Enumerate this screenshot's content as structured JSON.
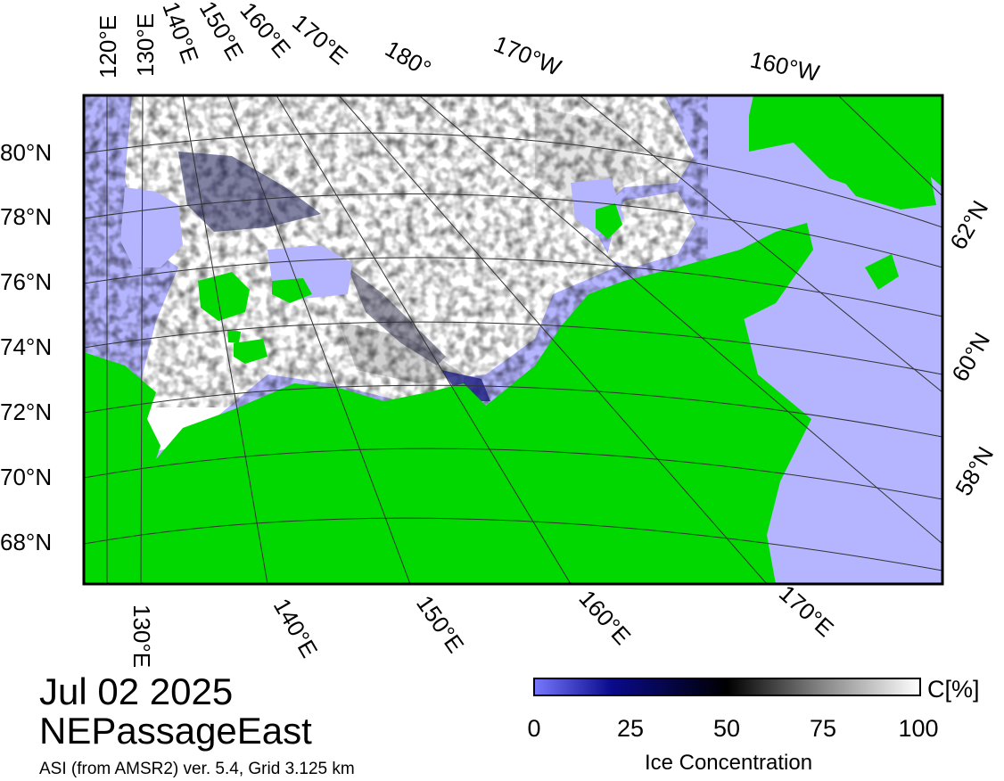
{
  "map": {
    "region": "NEPassageEast",
    "date": "Jul 02 2025",
    "source_note": "ASI (from AMSR2) ver. 5.4,  Grid 3.125 km",
    "colors": {
      "land": "#00d800",
      "open_water": "#b4b4ff",
      "ice_full": "#ffffff",
      "frame": "#000000",
      "grid": "#333333"
    },
    "top_lon_labels": [
      "120°E",
      "130°E",
      "140°E",
      "150°E",
      "160°E",
      "170°E",
      "180°",
      "170°W",
      "160°W"
    ],
    "left_lat_labels": [
      "80°N",
      "78°N",
      "76°N",
      "74°N",
      "72°N",
      "70°N",
      "68°N"
    ],
    "right_lat_labels": [
      "62°N",
      "60°N",
      "58°N"
    ],
    "bottom_lon_labels": [
      "130°E",
      "140°E",
      "150°E",
      "160°E",
      "170°E"
    ]
  },
  "colorbar": {
    "title": "Ice Concentration",
    "unit": "C[%]",
    "ticks": [
      "0",
      "25",
      "50",
      "75",
      "100"
    ],
    "gradient_stops": [
      "#7878ff",
      "#0a0a8c",
      "#000000",
      "#888888",
      "#ffffff"
    ]
  }
}
